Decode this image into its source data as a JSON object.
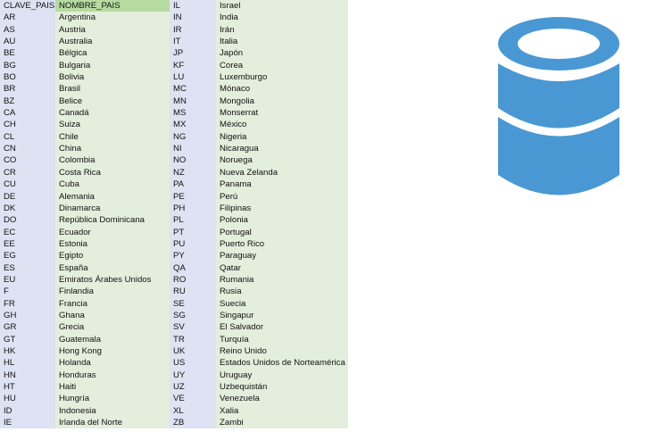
{
  "colors": {
    "code_column": "#dde3f2",
    "name_column": "#e3eedc",
    "header_highlight": "#b6dba0",
    "icon": "#4a98d3"
  },
  "icon": "database-icon",
  "table": {
    "left": {
      "header": {
        "code": "CLAVE_PAIS",
        "name": "NOMBRE_PAIS"
      },
      "rows": [
        {
          "code": "AR",
          "name": "Argentina"
        },
        {
          "code": "AS",
          "name": "Austria"
        },
        {
          "code": "AU",
          "name": "Australia"
        },
        {
          "code": "BE",
          "name": "Bélgica"
        },
        {
          "code": "BG",
          "name": "Bulgaria"
        },
        {
          "code": "BO",
          "name": "Bolivia"
        },
        {
          "code": "BR",
          "name": "Brasil"
        },
        {
          "code": "BZ",
          "name": "Belice"
        },
        {
          "code": "CA",
          "name": "Canadá"
        },
        {
          "code": "CH",
          "name": "Suiza"
        },
        {
          "code": "CL",
          "name": "Chile"
        },
        {
          "code": "CN",
          "name": "China"
        },
        {
          "code": "CO",
          "name": "Colombia"
        },
        {
          "code": "CR",
          "name": "Costa Rica"
        },
        {
          "code": "CU",
          "name": "Cuba"
        },
        {
          "code": "DE",
          "name": "Alemania"
        },
        {
          "code": "DK",
          "name": "Dinamarca"
        },
        {
          "code": "DO",
          "name": "República Dominicana"
        },
        {
          "code": "EC",
          "name": "Ecuador"
        },
        {
          "code": "EE",
          "name": "Estonia"
        },
        {
          "code": "EG",
          "name": "Egipto"
        },
        {
          "code": "ES",
          "name": "España"
        },
        {
          "code": "EU",
          "name": "Emiratos Árabes Unidos"
        },
        {
          "code": "F",
          "name": "Finlandia"
        },
        {
          "code": "FR",
          "name": "Francia"
        },
        {
          "code": "GH",
          "name": "Ghana"
        },
        {
          "code": "GR",
          "name": "Grecia"
        },
        {
          "code": "GT",
          "name": "Guatemala"
        },
        {
          "code": "HK",
          "name": "Hong Kong"
        },
        {
          "code": "HL",
          "name": "Holanda"
        },
        {
          "code": "HN",
          "name": "Honduras"
        },
        {
          "code": "HT",
          "name": "Haiti"
        },
        {
          "code": "HU",
          "name": "Hungría"
        },
        {
          "code": "ID",
          "name": "Indonesia"
        },
        {
          "code": "IE",
          "name": "Irlanda del Norte"
        }
      ]
    },
    "right": {
      "rows": [
        {
          "code": "IL",
          "name": "Israel"
        },
        {
          "code": "IN",
          "name": "India"
        },
        {
          "code": "IR",
          "name": "Irán"
        },
        {
          "code": "IT",
          "name": "Italia"
        },
        {
          "code": "JP",
          "name": "Japón"
        },
        {
          "code": "KF",
          "name": "Corea"
        },
        {
          "code": "LU",
          "name": "Luxemburgo"
        },
        {
          "code": "MC",
          "name": "Mónaco"
        },
        {
          "code": "MN",
          "name": "Mongolia"
        },
        {
          "code": "MS",
          "name": "Monserrat"
        },
        {
          "code": "MX",
          "name": "México"
        },
        {
          "code": "NG",
          "name": "Nigeria"
        },
        {
          "code": "NI",
          "name": "Nicaragua"
        },
        {
          "code": "NO",
          "name": "Noruega"
        },
        {
          "code": "NZ",
          "name": "Nueva Zelanda"
        },
        {
          "code": "PA",
          "name": "Panama"
        },
        {
          "code": "PE",
          "name": "Perú"
        },
        {
          "code": "PH",
          "name": "Filipinas"
        },
        {
          "code": "PL",
          "name": "Polonia"
        },
        {
          "code": "PT",
          "name": "Portugal"
        },
        {
          "code": "PU",
          "name": "Puerto Rico"
        },
        {
          "code": "PY",
          "name": "Paraguay"
        },
        {
          "code": "QA",
          "name": "Qatar"
        },
        {
          "code": "RO",
          "name": "Rumania"
        },
        {
          "code": "RU",
          "name": "Rusia"
        },
        {
          "code": "SE",
          "name": "Suecia"
        },
        {
          "code": "SG",
          "name": "Singapur"
        },
        {
          "code": "SV",
          "name": "El Salvador"
        },
        {
          "code": "TR",
          "name": "Turquía"
        },
        {
          "code": "UK",
          "name": "Reino Unido"
        },
        {
          "code": "US",
          "name": "Estados Unidos de Norteamérica"
        },
        {
          "code": "UY",
          "name": "Uruguay"
        },
        {
          "code": "UZ",
          "name": "Uzbequistán"
        },
        {
          "code": "VE",
          "name": "Venezuela"
        },
        {
          "code": "XL",
          "name": "Xalia"
        },
        {
          "code": "ZB",
          "name": "Zambi"
        }
      ]
    }
  }
}
